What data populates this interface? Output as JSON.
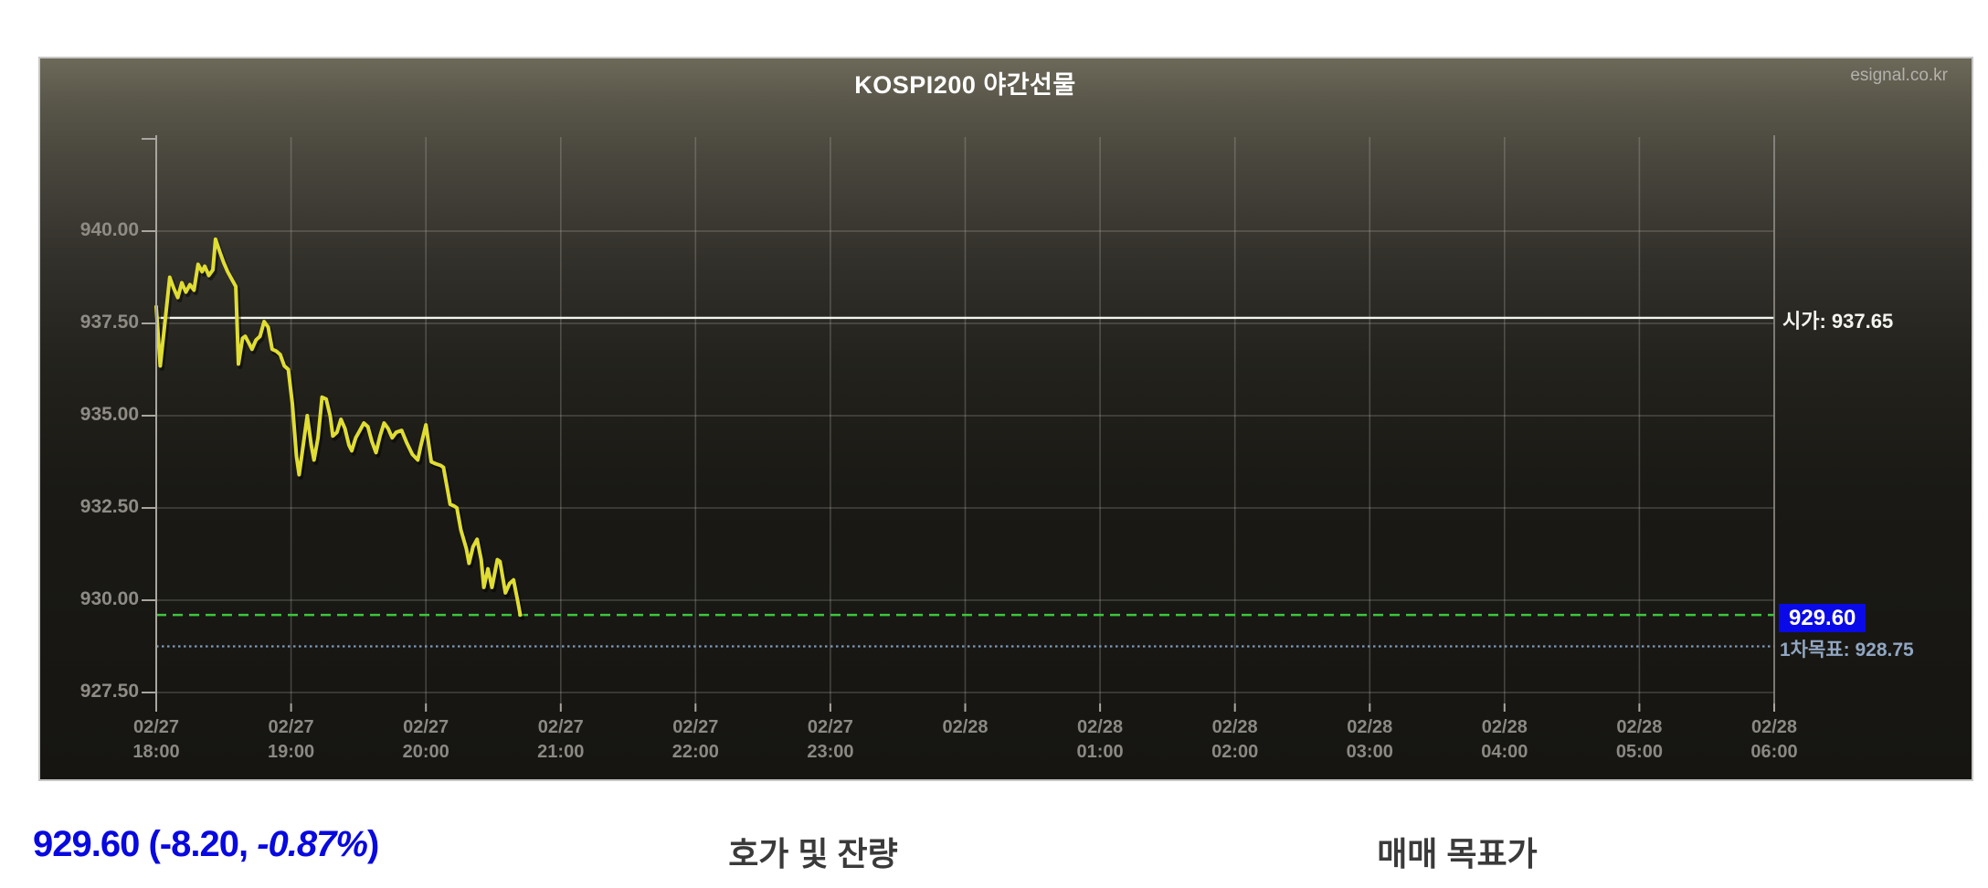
{
  "header": {
    "title": "KOSPI200 야간선물",
    "watermark": "esignal.co.kr"
  },
  "chart_data": {
    "type": "line",
    "title": "KOSPI200 야간선물",
    "xlabel": "",
    "ylabel": "",
    "grid": true,
    "legend_position": "none",
    "ylim": [
      927.2,
      942.5
    ],
    "x_range_hours": [
      0,
      12
    ],
    "y_ticks": [
      "940.00",
      "937.50",
      "935.00",
      "932.50",
      "930.00",
      "927.50"
    ],
    "y_tick_values": [
      940.0,
      937.5,
      935.0,
      932.5,
      930.0,
      927.5
    ],
    "x_ticks": [
      {
        "date": "02/27",
        "time": "18:00"
      },
      {
        "date": "02/27",
        "time": "19:00"
      },
      {
        "date": "02/27",
        "time": "20:00"
      },
      {
        "date": "02/27",
        "time": "21:00"
      },
      {
        "date": "02/27",
        "time": "22:00"
      },
      {
        "date": "02/27",
        "time": "23:00"
      },
      {
        "date": "02/28",
        "time": ""
      },
      {
        "date": "02/28",
        "time": "01:00"
      },
      {
        "date": "02/28",
        "time": "02:00"
      },
      {
        "date": "02/28",
        "time": "03:00"
      },
      {
        "date": "02/28",
        "time": "04:00"
      },
      {
        "date": "02/28",
        "time": "05:00"
      },
      {
        "date": "02/28",
        "time": "06:00"
      }
    ],
    "series": [
      {
        "name": "KOSPI200 야간선물",
        "color": "#e0dd33",
        "points": [
          [
            0.0,
            937.95
          ],
          [
            0.03,
            936.35
          ],
          [
            0.07,
            937.7
          ],
          [
            0.1,
            938.75
          ],
          [
            0.13,
            938.45
          ],
          [
            0.16,
            938.2
          ],
          [
            0.19,
            938.6
          ],
          [
            0.22,
            938.35
          ],
          [
            0.25,
            938.55
          ],
          [
            0.28,
            938.4
          ],
          [
            0.31,
            939.1
          ],
          [
            0.34,
            938.9
          ],
          [
            0.36,
            939.05
          ],
          [
            0.39,
            938.8
          ],
          [
            0.42,
            938.95
          ],
          [
            0.44,
            939.78
          ],
          [
            0.47,
            939.45
          ],
          [
            0.5,
            939.15
          ],
          [
            0.53,
            938.9
          ],
          [
            0.56,
            938.7
          ],
          [
            0.59,
            938.5
          ],
          [
            0.61,
            936.4
          ],
          [
            0.64,
            937.1
          ],
          [
            0.66,
            937.15
          ],
          [
            0.69,
            936.95
          ],
          [
            0.71,
            936.8
          ],
          [
            0.74,
            937.05
          ],
          [
            0.77,
            937.15
          ],
          [
            0.8,
            937.55
          ],
          [
            0.83,
            937.4
          ],
          [
            0.86,
            936.8
          ],
          [
            0.89,
            936.75
          ],
          [
            0.92,
            936.65
          ],
          [
            0.95,
            936.35
          ],
          [
            0.98,
            936.25
          ],
          [
            1.01,
            935.3
          ],
          [
            1.04,
            933.9
          ],
          [
            1.06,
            933.4
          ],
          [
            1.09,
            934.2
          ],
          [
            1.12,
            935.0
          ],
          [
            1.15,
            934.2
          ],
          [
            1.17,
            933.8
          ],
          [
            1.2,
            934.4
          ],
          [
            1.23,
            935.5
          ],
          [
            1.26,
            935.45
          ],
          [
            1.29,
            935.0
          ],
          [
            1.31,
            934.45
          ],
          [
            1.34,
            934.55
          ],
          [
            1.37,
            934.9
          ],
          [
            1.4,
            934.65
          ],
          [
            1.43,
            934.2
          ],
          [
            1.45,
            934.05
          ],
          [
            1.48,
            934.4
          ],
          [
            1.51,
            934.6
          ],
          [
            1.54,
            934.8
          ],
          [
            1.57,
            934.7
          ],
          [
            1.6,
            934.3
          ],
          [
            1.63,
            934.0
          ],
          [
            1.66,
            934.45
          ],
          [
            1.69,
            934.8
          ],
          [
            1.72,
            934.65
          ],
          [
            1.75,
            934.4
          ],
          [
            1.78,
            934.55
          ],
          [
            1.82,
            934.6
          ],
          [
            1.86,
            934.25
          ],
          [
            1.9,
            933.95
          ],
          [
            1.94,
            933.8
          ],
          [
            1.96,
            934.15
          ],
          [
            2.0,
            934.75
          ],
          [
            2.04,
            933.75
          ],
          [
            2.07,
            933.7
          ],
          [
            2.11,
            933.65
          ],
          [
            2.13,
            933.6
          ],
          [
            2.16,
            933.0
          ],
          [
            2.18,
            932.6
          ],
          [
            2.21,
            932.55
          ],
          [
            2.23,
            932.5
          ],
          [
            2.26,
            931.9
          ],
          [
            2.3,
            931.4
          ],
          [
            2.32,
            931.0
          ],
          [
            2.35,
            931.45
          ],
          [
            2.38,
            931.65
          ],
          [
            2.41,
            931.1
          ],
          [
            2.43,
            930.35
          ],
          [
            2.46,
            930.85
          ],
          [
            2.49,
            930.35
          ],
          [
            2.53,
            931.1
          ],
          [
            2.55,
            931.05
          ],
          [
            2.59,
            930.2
          ],
          [
            2.62,
            930.45
          ],
          [
            2.65,
            930.55
          ],
          [
            2.68,
            930.0
          ],
          [
            2.7,
            929.6
          ]
        ]
      }
    ],
    "overlays": {
      "open": {
        "value": 937.65,
        "label": "시가: 937.65",
        "line_color": "#f4f4ee"
      },
      "last": {
        "value": 929.6,
        "label": "929.60",
        "line_color": "#3ec43e",
        "badge_bg": "#0a0ae8"
      },
      "target": {
        "value": 928.75,
        "label": "1차목표: 928.75",
        "line_color": "#7e99ba",
        "text_color": "#91a6c2"
      }
    },
    "colors": {
      "grid": "rgba(190,188,180,0.28)",
      "axis": "#a8a69e",
      "tick_label": "#8b8983"
    }
  },
  "footer": {
    "price": "929.60 (-8.20, ",
    "price_pct_italic": "-0.87%",
    "price_close": ")",
    "price_color": "#0808e0",
    "left_panel_title": "호가 및 잔량",
    "right_panel_title": "매매 목표가"
  }
}
